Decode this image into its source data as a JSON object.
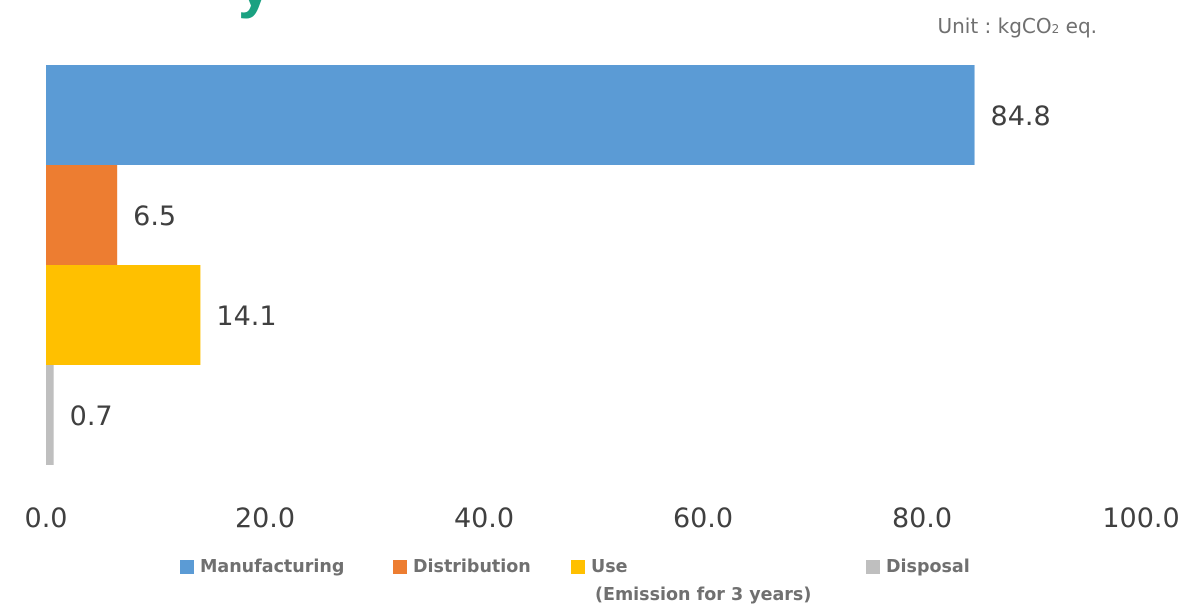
{
  "chart_data": {
    "type": "bar",
    "orientation": "horizontal",
    "title_fragment": "y",
    "unit_label": "Unit : kgCO",
    "unit_subscript": "2",
    "unit_suffix": " eq.",
    "categories": [
      "Manufacturing",
      "Distribution",
      "Use",
      "Disposal"
    ],
    "values": [
      84.8,
      6.5,
      14.1,
      0.7
    ],
    "value_labels": [
      "84.8",
      "6.5",
      "14.1",
      "0.7"
    ],
    "colors": [
      "#5b9bd5",
      "#ed7d31",
      "#ffc000",
      "#bfbfbf"
    ],
    "xlim": [
      0,
      100
    ],
    "x_ticks": [
      "0.0",
      "20.0",
      "40.0",
      "60.0",
      "80.0",
      "100.0"
    ],
    "grid": false,
    "legend_position": "bottom",
    "legend": [
      {
        "label": "Manufacturing",
        "color": "#5b9bd5"
      },
      {
        "label": "Distribution",
        "color": "#ed7d31"
      },
      {
        "label": "Use",
        "color": "#ffc000"
      },
      {
        "label": "Disposal",
        "color": "#bfbfbf"
      }
    ],
    "legend_note": "(Emission for 3 years)"
  }
}
